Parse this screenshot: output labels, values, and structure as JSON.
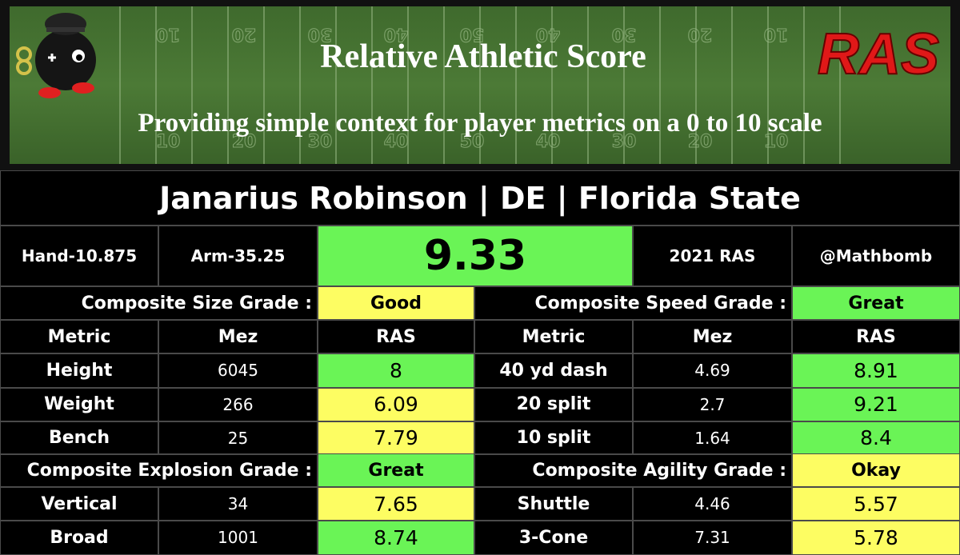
{
  "header": {
    "title": "Relative Athletic Score",
    "subtitle": "Providing simple context for player metrics on a 0 to 10 scale",
    "logo": "RAS",
    "yard_numbers": [
      "10",
      "20",
      "30",
      "40",
      "50",
      "40",
      "30",
      "20",
      "10"
    ]
  },
  "player": "Janarius Robinson | DE | Florida State",
  "info": {
    "hand": "Hand-10.875",
    "arm": "Arm-35.25",
    "score": "9.33",
    "score_color": "#6af456",
    "year": "2021 RAS",
    "handle": "@Mathbomb"
  },
  "sections": [
    {
      "label": "Composite Size Grade :",
      "grade": "Good",
      "grade_color": "#fdfd62",
      "column_headers": [
        "Metric",
        "Mez",
        "RAS"
      ],
      "rows": [
        {
          "metric": "Height",
          "mez": "6045",
          "ras": "8",
          "color": "#6af456"
        },
        {
          "metric": "Weight",
          "mez": "266",
          "ras": "6.09",
          "color": "#fdfd62"
        },
        {
          "metric": "Bench",
          "mez": "25",
          "ras": "7.79",
          "color": "#fdfd62"
        }
      ]
    },
    {
      "label": "Composite Speed Grade :",
      "grade": "Great",
      "grade_color": "#6af456",
      "column_headers": [
        "Metric",
        "Mez",
        "RAS"
      ],
      "rows": [
        {
          "metric": "40 yd dash",
          "mez": "4.69",
          "ras": "8.91",
          "color": "#6af456"
        },
        {
          "metric": "20 split",
          "mez": "2.7",
          "ras": "9.21",
          "color": "#6af456"
        },
        {
          "metric": "10 split",
          "mez": "1.64",
          "ras": "8.4",
          "color": "#6af456"
        }
      ]
    },
    {
      "label": "Composite Explosion Grade :",
      "grade": "Great",
      "grade_color": "#6af456",
      "rows": [
        {
          "metric": "Vertical",
          "mez": "34",
          "ras": "7.65",
          "color": "#fdfd62"
        },
        {
          "metric": "Broad",
          "mez": "1001",
          "ras": "8.74",
          "color": "#6af456"
        }
      ]
    },
    {
      "label": "Composite Agility Grade :",
      "grade": "Okay",
      "grade_color": "#fdfd62",
      "rows": [
        {
          "metric": "Shuttle",
          "mez": "4.46",
          "ras": "5.57",
          "color": "#fdfd62"
        },
        {
          "metric": "3-Cone",
          "mez": "7.31",
          "ras": "5.78",
          "color": "#fdfd62"
        }
      ]
    }
  ]
}
